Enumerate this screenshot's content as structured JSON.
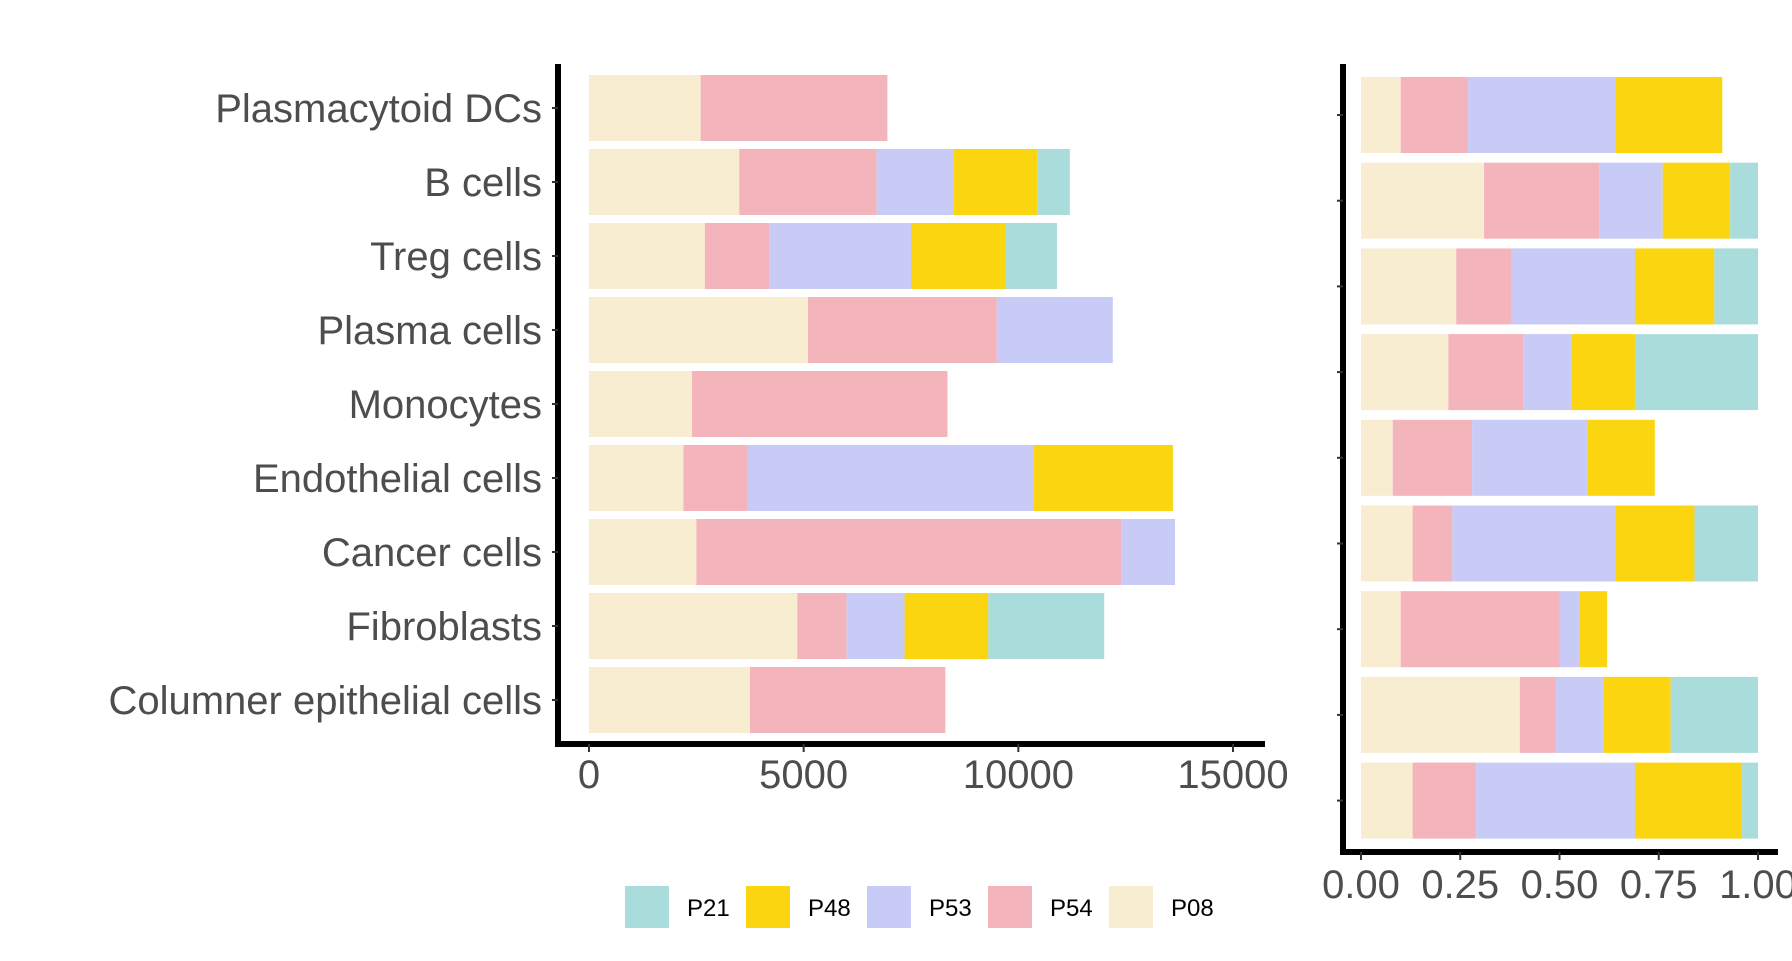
{
  "colors": {
    "P21": "#abdcdc",
    "P48": "#fad510",
    "P53": "#c7cbf5",
    "P54": "#f4b4bb",
    "P08": "#f8ecd1"
  },
  "chart_data": [
    {
      "type": "bar",
      "orientation": "horizontal",
      "stacked": true,
      "xlim": [
        0,
        15000
      ],
      "xticks": [
        "0",
        "5000",
        "10000",
        "15000"
      ],
      "categories": [
        "Plasmacytoid DCs",
        "B cells",
        "Treg cells",
        "Plasma cells",
        "Monocytes",
        "Endothelial cells",
        "Cancer cells",
        "Fibroblasts",
        "Columner epithelial cells"
      ],
      "stack_order": [
        "P08",
        "P54",
        "P53",
        "P48",
        "P21"
      ],
      "series": [
        {
          "name": "P08",
          "values": [
            2600,
            3500,
            2700,
            5100,
            2400,
            2200,
            2500,
            4850,
            3750
          ]
        },
        {
          "name": "P54",
          "values": [
            4350,
            3200,
            1500,
            4400,
            5950,
            1500,
            9900,
            1150,
            4550
          ]
        },
        {
          "name": "P53",
          "values": [
            0,
            1800,
            3300,
            2700,
            0,
            6650,
            1250,
            1350,
            0
          ]
        },
        {
          "name": "P48",
          "values": [
            0,
            1950,
            2200,
            0,
            0,
            3250,
            0,
            1950,
            0
          ]
        },
        {
          "name": "P21",
          "values": [
            0,
            750,
            1200,
            0,
            0,
            0,
            0,
            2700,
            0
          ]
        }
      ],
      "grid": false
    },
    {
      "type": "bar",
      "orientation": "horizontal",
      "stacked": true,
      "normalized": true,
      "xlim": [
        0,
        1
      ],
      "xticks": [
        "0.00",
        "0.25",
        "0.50",
        "0.75",
        "1.00"
      ],
      "stack_order": [
        "P08",
        "P54",
        "P53",
        "P48",
        "P21"
      ],
      "series": [
        {
          "name": "P08",
          "values": [
            0.1,
            0.31,
            0.24,
            0.22,
            0.08,
            0.13,
            0.1,
            0.4,
            0.13
          ]
        },
        {
          "name": "P54",
          "values": [
            0.17,
            0.29,
            0.14,
            0.19,
            0.2,
            0.1,
            0.4,
            0.09,
            0.16
          ]
        },
        {
          "name": "P53",
          "values": [
            0.37,
            0.16,
            0.31,
            0.12,
            0.29,
            0.41,
            0.05,
            0.12,
            0.4
          ]
        },
        {
          "name": "P48",
          "values": [
            0.27,
            0.17,
            0.2,
            0.16,
            0.17,
            0.2,
            0.07,
            0.17,
            0.27
          ]
        },
        {
          "name": "P21",
          "values": [
            0.0,
            0.07,
            0.11,
            0.31,
            0.0,
            0.16,
            0.0,
            0.22,
            0.04
          ]
        }
      ],
      "grid": false
    }
  ],
  "legend": {
    "placement": "bottom",
    "entries": [
      "P21",
      "P48",
      "P53",
      "P54",
      "P08"
    ]
  }
}
